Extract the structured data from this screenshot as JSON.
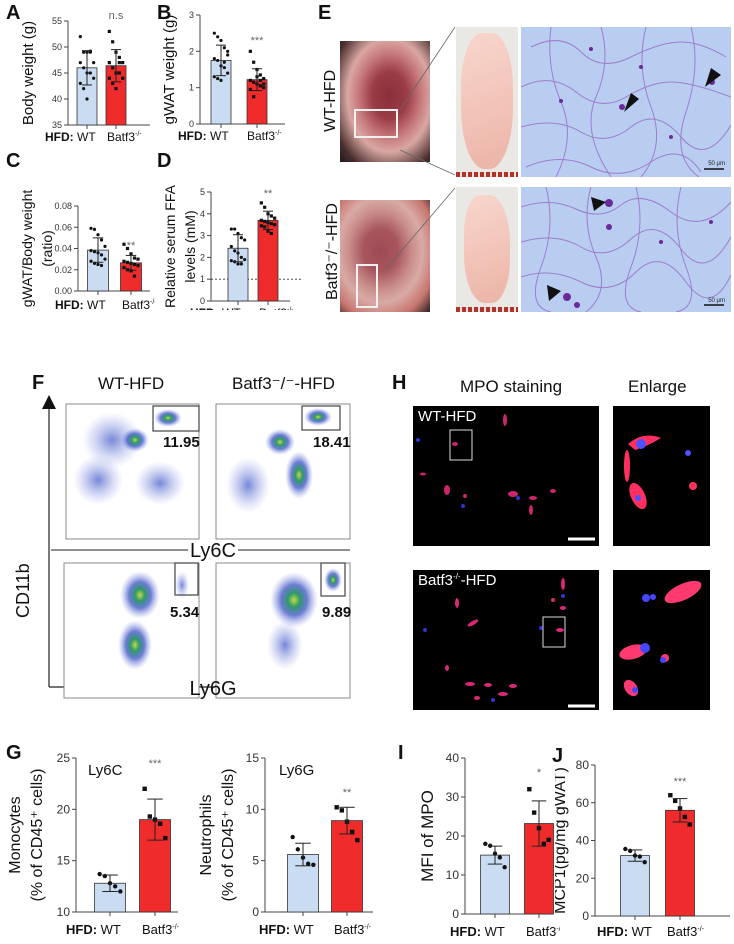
{
  "panels": {
    "A": {
      "letter": "A"
    },
    "B": {
      "letter": "B"
    },
    "C": {
      "letter": "C"
    },
    "D": {
      "letter": "D"
    },
    "E": {
      "letter": "E",
      "row_labels": [
        "WT-HFD",
        "Batf3⁻/⁻-HFD"
      ],
      "scale_bar": "50 μm"
    },
    "F": {
      "letter": "F",
      "col_titles": [
        "WT-HFD",
        "Batf3⁻/⁻-HFD"
      ],
      "y_axis": "CD11b",
      "x_axis_top": "Ly6C",
      "x_axis_bottom": "Ly6G",
      "gates": {
        "ly6c_wt": "11.95",
        "ly6c_ko": "18.41",
        "ly6g_wt": "5.34",
        "ly6g_ko": "9.89"
      }
    },
    "G": {
      "letter": "G"
    },
    "H": {
      "letter": "H",
      "col_titles": [
        "MPO staining",
        "Enlarge"
      ],
      "row_labels": [
        "WT-HFD",
        "Batf3⁻/⁻-HFD"
      ]
    },
    "I": {
      "letter": "I"
    },
    "J": {
      "letter": "J"
    }
  },
  "common": {
    "hfd_prefix": "HFD:",
    "wt": "WT",
    "ko": "Batf3",
    "ko_sup": "-/-"
  },
  "colors": {
    "wt_fill": "#c9dcf2",
    "ko_fill": "#ef2b2b",
    "bar_stroke": "#333333"
  },
  "chart_data": [
    {
      "id": "A",
      "type": "bar",
      "title": "",
      "ylabel": "Body weight (g)",
      "xlabel": "HFD:",
      "categories": [
        "WT",
        "Batf3-/-"
      ],
      "ylim": [
        35,
        55
      ],
      "yticks": [
        35,
        40,
        45,
        50,
        55
      ],
      "series": [
        {
          "name": "mean",
          "values": [
            46.0,
            46.4
          ]
        }
      ],
      "error": [
        3.3,
        3.1
      ],
      "significance": "n.s",
      "points": [
        [
          52,
          49,
          49,
          49,
          47,
          47,
          46,
          45,
          45,
          44,
          43,
          42,
          40,
          49.2
        ],
        [
          53,
          51,
          49,
          48,
          47,
          47,
          46,
          45,
          45,
          44,
          44,
          43,
          42,
          47
        ]
      ]
    },
    {
      "id": "B",
      "type": "bar",
      "ylabel": "gWAT weight (g)",
      "xlabel": "HFD:",
      "categories": [
        "WT",
        "Batf3-/-"
      ],
      "ylim": [
        0,
        3
      ],
      "yticks": [
        0,
        1,
        2,
        3
      ],
      "series": [
        {
          "name": "mean",
          "values": [
            1.75,
            1.22
          ]
        }
      ],
      "error": [
        0.42,
        0.3
      ],
      "significance": "***",
      "points": [
        [
          2.5,
          2.4,
          2.3,
          2.1,
          1.9,
          1.8,
          1.75,
          1.6,
          1.55,
          1.4,
          1.3,
          1.25,
          1.2,
          1.7,
          2.0
        ],
        [
          2.0,
          1.7,
          1.5,
          1.35,
          1.25,
          1.2,
          1.15,
          1.1,
          1.05,
          1.0,
          0.95,
          0.75,
          1.3,
          1.2,
          1.1
        ]
      ]
    },
    {
      "id": "C",
      "type": "bar",
      "ylabel": "gWAT/Body weight (ratio)",
      "xlabel": "HFD:",
      "categories": [
        "WT",
        "Batf3-/-"
      ],
      "ylim": [
        0,
        0.08
      ],
      "yticks": [
        0.0,
        0.02,
        0.04,
        0.06,
        0.08
      ],
      "series": [
        {
          "name": "mean",
          "values": [
            0.0385,
            0.0265
          ]
        }
      ],
      "error": [
        0.0115,
        0.007
      ],
      "significance": "**",
      "points": [
        [
          0.059,
          0.058,
          0.053,
          0.048,
          0.042,
          0.038,
          0.037,
          0.036,
          0.034,
          0.03,
          0.028,
          0.026,
          0.025,
          0.024
        ],
        [
          0.044,
          0.04,
          0.035,
          0.031,
          0.03,
          0.028,
          0.027,
          0.026,
          0.025,
          0.024,
          0.022,
          0.02,
          0.019,
          0.014
        ]
      ]
    },
    {
      "id": "D",
      "type": "bar",
      "ylabel": "Relative serum FFA levels (mM)",
      "xlabel": "HFD:",
      "categories": [
        "WT",
        "Batf3-/-"
      ],
      "ylim": [
        0,
        5
      ],
      "yticks": [
        0,
        1,
        2,
        3,
        4,
        5
      ],
      "reference_line": 1,
      "series": [
        {
          "name": "mean",
          "values": [
            2.42,
            3.7
          ]
        }
      ],
      "error": [
        0.62,
        0.42
      ],
      "significance": "**",
      "points": [
        [
          3.3,
          3.3,
          3.1,
          2.9,
          2.8,
          2.5,
          2.3,
          2.2,
          2.0,
          1.9,
          1.85,
          1.8,
          1.7,
          1.7
        ],
        [
          4.5,
          4.3,
          4.0,
          3.9,
          3.8,
          3.7,
          3.65,
          3.6,
          3.55,
          3.5,
          3.45,
          3.4,
          3.2,
          3.1
        ]
      ]
    },
    {
      "id": "G-left",
      "type": "bar",
      "title": "Ly6C",
      "ylabel": "Monocytes (% of CD45+ cells)",
      "xlabel": "HFD:",
      "categories": [
        "WT",
        "Batf3-/-"
      ],
      "ylim": [
        10,
        25
      ],
      "yticks": [
        10,
        15,
        20,
        25
      ],
      "series": [
        {
          "name": "mean",
          "values": [
            12.8,
            19.0
          ]
        }
      ],
      "error": [
        0.8,
        2.0
      ],
      "significance": "***",
      "points": [
        [
          13.7,
          13.5,
          12.8,
          12.5,
          12.0
        ],
        [
          22.0,
          19.3,
          19.0,
          18.6,
          17.2
        ]
      ]
    },
    {
      "id": "G-right",
      "type": "bar",
      "title": "Ly6G",
      "ylabel": "Neutrophils (% of CD45+ cells)",
      "xlabel": "HFD:",
      "categories": [
        "WT",
        "Batf3-/-"
      ],
      "ylim": [
        0,
        15
      ],
      "yticks": [
        0,
        5,
        10,
        15
      ],
      "series": [
        {
          "name": "mean",
          "values": [
            5.6,
            8.9
          ]
        }
      ],
      "error": [
        1.1,
        1.3
      ],
      "significance": "**",
      "points": [
        [
          7.3,
          6.1,
          5.3,
          4.7,
          4.6
        ],
        [
          10.2,
          9.9,
          8.8,
          7.8,
          7.0
        ]
      ]
    },
    {
      "id": "I",
      "type": "bar",
      "ylabel": "MFI of MPO",
      "xlabel": "HFD:",
      "categories": [
        "WT",
        "Batf3-/-"
      ],
      "ylim": [
        0,
        40
      ],
      "yticks": [
        0,
        10,
        20,
        30,
        40
      ],
      "series": [
        {
          "name": "mean",
          "values": [
            15.1,
            23.2
          ]
        }
      ],
      "error": [
        2.3,
        5.8
      ],
      "significance": "*",
      "points": [
        [
          18.0,
          17.5,
          15.5,
          14.5,
          12.0
        ],
        [
          32.0,
          26.0,
          22.0,
          18.0,
          19.0
        ]
      ]
    },
    {
      "id": "J",
      "type": "bar",
      "ylabel": "MCP1(pg/mg gWAT)",
      "xlabel": "HFD:",
      "categories": [
        "WT",
        "Batf3-/-"
      ],
      "ylim": [
        0,
        80
      ],
      "yticks": [
        0,
        20,
        40,
        60,
        80
      ],
      "series": [
        {
          "name": "mean",
          "values": [
            32.0,
            56.0
          ]
        }
      ],
      "error": [
        3.0,
        6.2
      ],
      "significance": "***",
      "points": [
        [
          35.5,
          34.5,
          32.0,
          31.5,
          28.5
        ],
        [
          64.0,
          61.0,
          57.0,
          52.5,
          48.5
        ]
      ]
    }
  ]
}
